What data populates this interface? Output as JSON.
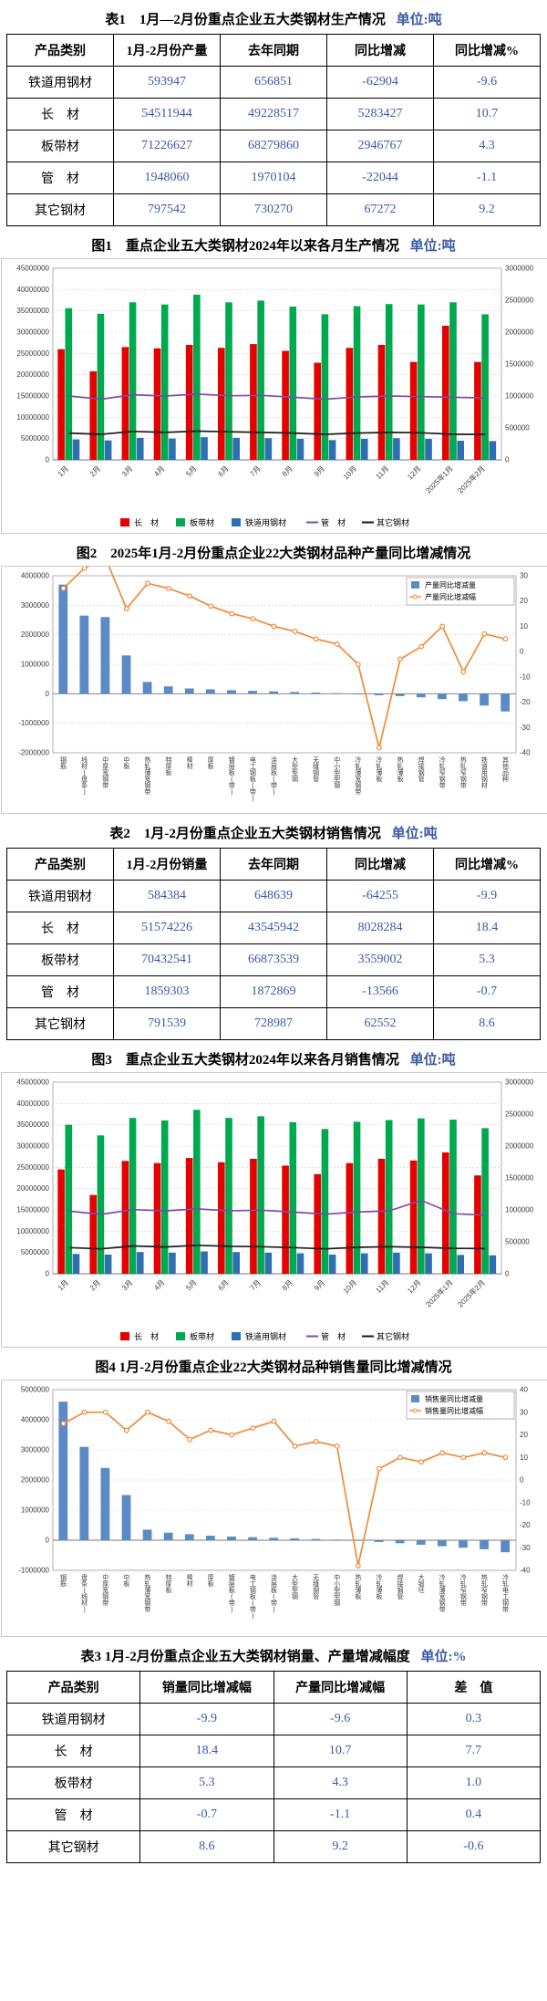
{
  "accent_colors": {
    "table_value_blue": "#3b5aa5",
    "bar_red": "#e60000",
    "bar_green": "#00a84f",
    "bar_blue": "#2e6fb0",
    "line_purple": "#7d4fa0",
    "line_black": "#1a1a1a",
    "combo_bar_blue": "#5b8ac5",
    "combo_line_orange": "#ef8b3a"
  },
  "tables": [
    {
      "caption": "表1　1月—2月份重点企业五大类钢材生产情况",
      "unit": "单位:吨",
      "headers": [
        "产品类别",
        "1月-2月份产量",
        "去年同期",
        "同比增减",
        "同比增减%"
      ],
      "rows": [
        [
          "铁道用钢材",
          "593947",
          "656851",
          "-62904",
          "-9.6"
        ],
        [
          "长　材",
          "54511944",
          "49228517",
          "5283427",
          "10.7"
        ],
        [
          "板带材",
          "71226627",
          "68279860",
          "2946767",
          "4.3"
        ],
        [
          "管　材",
          "1948060",
          "1970104",
          "-22044",
          "-1.1"
        ],
        [
          "其它钢材",
          "797542",
          "730270",
          "67272",
          "9.2"
        ]
      ]
    },
    {
      "caption": "表2　1月-2月份重点企业五大类钢材销售情况",
      "unit": "单位:吨",
      "headers": [
        "产品类别",
        "1月-2月份销量",
        "去年同期",
        "同比增减",
        "同比增减%"
      ],
      "rows": [
        [
          "铁道用钢材",
          "584384",
          "648639",
          "-64255",
          "-9.9"
        ],
        [
          "长　材",
          "51574226",
          "43545942",
          "8028284",
          "18.4"
        ],
        [
          "板带材",
          "70432541",
          "66873539",
          "3559002",
          "5.3"
        ],
        [
          "管　材",
          "1859303",
          "1872869",
          "-13566",
          "-0.7"
        ],
        [
          "其它钢材",
          "791539",
          "728987",
          "62552",
          "8.6"
        ]
      ]
    },
    {
      "caption": "表3 1月-2月份重点企业五大类钢材销量、产量增减幅度",
      "unit": "单位:%",
      "headers": [
        "产品类别",
        "销量同比增减幅",
        "产量同比增减幅",
        "差　值"
      ],
      "rows": [
        [
          "铁道用钢材",
          "-9.9",
          "-9.6",
          "0.3"
        ],
        [
          "长　材",
          "18.4",
          "10.7",
          "7.7"
        ],
        [
          "板带材",
          "5.3",
          "4.3",
          "1.0"
        ],
        [
          "管　材",
          "-0.7",
          "-1.1",
          "0.4"
        ],
        [
          "其它钢材",
          "8.6",
          "9.2",
          "-0.6"
        ]
      ]
    }
  ],
  "chart_data": [
    {
      "type": "combo",
      "title": "图1　重点企业五大类钢材2024年以来各月生产情况",
      "unit": "单位:吨",
      "legend_pos": "bottom",
      "x_label_mode": "rotate",
      "grid": true,
      "categories": [
        "1月",
        "2月",
        "3月",
        "4月",
        "5月",
        "6月",
        "7月",
        "8月",
        "9月",
        "10月",
        "11月",
        "12月",
        "2025年1月",
        "2025年2月"
      ],
      "left_axis": {
        "min": 0,
        "max": 45000000,
        "step": 5000000
      },
      "right_axis": {
        "min": 0,
        "max": 3000000,
        "step": 500000
      },
      "series": [
        {
          "name": "长　材",
          "type": "bar",
          "axis": "left",
          "color": "#e60000",
          "values": [
            26000000,
            20800000,
            26500000,
            26200000,
            27000000,
            26300000,
            27200000,
            25600000,
            22800000,
            26300000,
            27000000,
            23000000,
            31500000,
            23000000
          ]
        },
        {
          "name": "板带材",
          "type": "bar",
          "axis": "left",
          "color": "#00a84f",
          "values": [
            35600000,
            34300000,
            37000000,
            36500000,
            38800000,
            37000000,
            37400000,
            36000000,
            34200000,
            36100000,
            36600000,
            36500000,
            37000000,
            34200000
          ]
        },
        {
          "name": "铁道用钢材",
          "type": "bar",
          "axis": "right",
          "color": "#2e6fb0",
          "values": [
            320000,
            305000,
            345000,
            335000,
            355000,
            345000,
            340000,
            330000,
            310000,
            330000,
            340000,
            330000,
            300000,
            294000
          ]
        },
        {
          "name": "管　材",
          "type": "line",
          "axis": "right",
          "color": "#7d4fa0",
          "values": [
            1000000,
            950000,
            1020000,
            1000000,
            1030000,
            1005000,
            1010000,
            980000,
            950000,
            985000,
            1000000,
            990000,
            980000,
            968000
          ]
        },
        {
          "name": "其它钢材",
          "type": "line",
          "axis": "right",
          "color": "#1a1a1a",
          "values": [
            420000,
            400000,
            445000,
            430000,
            450000,
            440000,
            430000,
            420000,
            400000,
            420000,
            430000,
            425000,
            400000,
            398000
          ]
        }
      ]
    },
    {
      "type": "combo",
      "title": "图2　2025年1月-2月份重点企业22大类钢材品种产量同比增减情况",
      "legend_pos": "topright",
      "x_label_mode": "stack",
      "grid": true,
      "categories": [
        "钢筋",
        "线材(盘条)",
        "中厚宽钢带",
        "中板",
        "热轧薄宽钢带",
        "特厚板",
        "棒材",
        "厚板",
        "镀层板(带)",
        "电工钢板(带)",
        "涂层板(带)",
        "大型型钢",
        "无缝钢管",
        "中小型型钢",
        "冷轧薄宽钢带",
        "冷轧薄板",
        "热轧薄板",
        "焊接钢管",
        "冷轧窄钢带",
        "热轧窄钢带",
        "铁道用钢材",
        "其他品种"
      ],
      "left_axis": {
        "min": -2000000,
        "max": 4000000,
        "step": 1000000
      },
      "right_axis": {
        "min": -40,
        "max": 30,
        "step": 10
      },
      "series": [
        {
          "name": "产量同比增减量",
          "type": "bar",
          "axis": "left",
          "color": "#5b8ac5",
          "values": [
            3700000,
            2650000,
            2600000,
            1300000,
            400000,
            250000,
            180000,
            150000,
            120000,
            100000,
            80000,
            60000,
            40000,
            20000,
            -20000,
            -50000,
            -80000,
            -120000,
            -180000,
            -250000,
            -400000,
            -600000
          ]
        },
        {
          "name": "产量同比增减幅",
          "type": "line",
          "axis": "right",
          "color": "#ef8b3a",
          "marker": true,
          "values": [
            25,
            33,
            37,
            17,
            27,
            25,
            22,
            18,
            15,
            13,
            10,
            8,
            5,
            3,
            -5,
            -38,
            -3,
            2,
            10,
            -8,
            7,
            5
          ]
        }
      ]
    },
    {
      "type": "combo",
      "title": "图3　重点企业五大类钢材2024年以来各月销售情况",
      "unit": "单位:吨",
      "legend_pos": "bottom",
      "x_label_mode": "rotate",
      "grid": true,
      "categories": [
        "1月",
        "2月",
        "3月",
        "4月",
        "5月",
        "6月",
        "7月",
        "8月",
        "9月",
        "10月",
        "11月",
        "12月",
        "2025年1月",
        "2025年2月"
      ],
      "left_axis": {
        "min": 0,
        "max": 45000000,
        "step": 5000000
      },
      "right_axis": {
        "min": 0,
        "max": 3000000,
        "step": 500000
      },
      "series": [
        {
          "name": "长　材",
          "type": "bar",
          "axis": "left",
          "color": "#e60000",
          "values": [
            24500000,
            18500000,
            26500000,
            26000000,
            27200000,
            26200000,
            27000000,
            25400000,
            23400000,
            26000000,
            27000000,
            26600000,
            28500000,
            23100000
          ]
        },
        {
          "name": "板带材",
          "type": "bar",
          "axis": "left",
          "color": "#00a84f",
          "values": [
            35000000,
            32500000,
            36600000,
            36000000,
            38500000,
            36600000,
            37000000,
            35600000,
            34000000,
            35700000,
            36100000,
            36500000,
            36200000,
            34200000
          ]
        },
        {
          "name": "铁道用钢材",
          "type": "bar",
          "axis": "right",
          "color": "#2e6fb0",
          "values": [
            310000,
            300000,
            340000,
            330000,
            350000,
            340000,
            330000,
            320000,
            300000,
            320000,
            330000,
            320000,
            295000,
            289000
          ]
        },
        {
          "name": "管　材",
          "type": "line",
          "axis": "right",
          "color": "#7d4fa0",
          "values": [
            980000,
            930000,
            1005000,
            985000,
            1015000,
            985000,
            995000,
            965000,
            935000,
            965000,
            985000,
            1150000,
            940000,
            919000
          ]
        },
        {
          "name": "其它钢材",
          "type": "line",
          "axis": "right",
          "color": "#1a1a1a",
          "values": [
            410000,
            390000,
            435000,
            420000,
            445000,
            430000,
            425000,
            410000,
            390000,
            415000,
            425000,
            415000,
            398000,
            394000
          ]
        }
      ]
    },
    {
      "type": "combo",
      "title": "图4 1月-2月份重点企业22大类钢材品种销售量同比增减情况",
      "legend_pos": "topright",
      "x_label_mode": "stack",
      "grid": true,
      "categories": [
        "钢筋",
        "盘条(线材)",
        "中厚宽钢带",
        "中板",
        "热轧薄宽钢带",
        "特厚板",
        "棒材",
        "厚板",
        "镀层板(带)",
        "电工钢板(带)",
        "涂层板(带)",
        "大型型钢",
        "无缝钢管",
        "中小型型钢",
        "热轧薄板",
        "冷轧薄板",
        "焊接钢管",
        "大锻坯",
        "冷轧薄宽钢带",
        "冷轧窄钢带",
        "热轧窄钢带",
        "冷轧电工钢带"
      ],
      "left_axis": {
        "min": -1000000,
        "max": 5000000,
        "step": 1000000
      },
      "right_axis": {
        "min": -40,
        "max": 40,
        "step": 10
      },
      "series": [
        {
          "name": "销售量同比增减量",
          "type": "bar",
          "axis": "left",
          "color": "#5b8ac5",
          "values": [
            4600000,
            3100000,
            2400000,
            1500000,
            350000,
            250000,
            200000,
            150000,
            120000,
            100000,
            80000,
            60000,
            40000,
            20000,
            -20000,
            -60000,
            -100000,
            -150000,
            -200000,
            -250000,
            -300000,
            -400000
          ]
        },
        {
          "name": "销售量同比增减幅",
          "type": "line",
          "axis": "right",
          "color": "#ef8b3a",
          "marker": true,
          "values": [
            25,
            30,
            30,
            22,
            30,
            26,
            18,
            22,
            20,
            23,
            26,
            15,
            17,
            15,
            -38,
            5,
            10,
            8,
            12,
            10,
            12,
            10
          ]
        }
      ]
    }
  ]
}
